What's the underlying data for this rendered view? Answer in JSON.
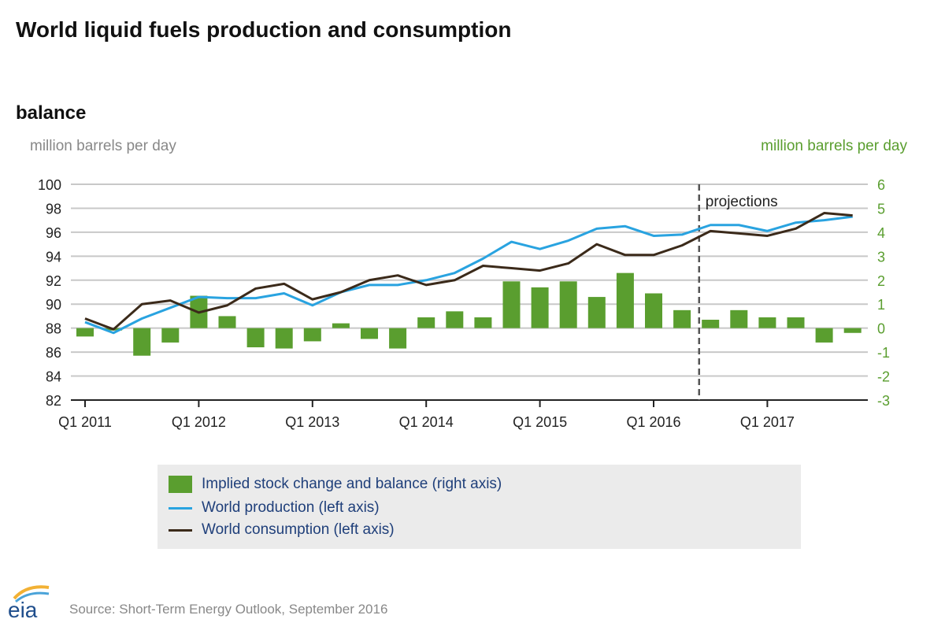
{
  "title": "World liquid fuels production and consumption",
  "subtitle": "balance",
  "left_unit": "million barrels per day",
  "right_unit": "million barrels per day",
  "source": "Source: Short-Term Energy Outlook, September 2016",
  "logo_text": "eia",
  "colors": {
    "bars": "#5a9e2f",
    "production": "#29a3e0",
    "consumption": "#3b2a1a",
    "right_axis": "#5a9e2f"
  },
  "chart_data": {
    "type": "bar+line",
    "x": [
      "Q1 2011",
      "Q2 2011",
      "Q3 2011",
      "Q4 2011",
      "Q1 2012",
      "Q2 2012",
      "Q3 2012",
      "Q4 2012",
      "Q1 2013",
      "Q2 2013",
      "Q3 2013",
      "Q4 2013",
      "Q1 2014",
      "Q2 2014",
      "Q3 2014",
      "Q4 2014",
      "Q1 2015",
      "Q2 2015",
      "Q3 2015",
      "Q4 2015",
      "Q1 2016",
      "Q2 2016",
      "Q3 2016",
      "Q4 2016",
      "Q1 2017",
      "Q2 2017",
      "Q3 2017",
      "Q4 2017"
    ],
    "x_tick_labels": [
      "Q1 2011",
      "Q1 2012",
      "Q1 2013",
      "Q1 2014",
      "Q1 2015",
      "Q1 2016",
      "Q1 2017"
    ],
    "left_axis": {
      "range": [
        82,
        100
      ],
      "ticks": [
        "82",
        "84",
        "86",
        "88",
        "90",
        "92",
        "94",
        "96",
        "98",
        "100"
      ]
    },
    "right_axis": {
      "range": [
        -3,
        6
      ],
      "ticks": [
        "-3",
        "-2",
        "-1",
        "0",
        "1",
        "2",
        "3",
        "4",
        "5",
        "6"
      ]
    },
    "grid": true,
    "annotation": "projections",
    "projection_start": "Q3 2016",
    "legend_placement": "bottom",
    "series": [
      {
        "name": "Implied stock change and balance (right axis)",
        "type": "bar",
        "axis": "right",
        "values": [
          -0.35,
          -0.1,
          -1.15,
          -0.6,
          1.35,
          0.5,
          -0.8,
          -0.85,
          -0.55,
          0.2,
          -0.45,
          -0.85,
          0.45,
          0.7,
          0.45,
          1.95,
          1.7,
          1.95,
          1.3,
          2.3,
          1.45,
          0.75,
          0.35,
          0.75,
          0.45,
          0.45,
          -0.6,
          -0.2
        ]
      },
      {
        "name": "World production (left axis)",
        "type": "line",
        "axis": "left",
        "values": [
          88.5,
          87.6,
          88.8,
          89.7,
          90.6,
          90.5,
          90.5,
          90.9,
          89.9,
          91.0,
          91.6,
          91.6,
          92.0,
          92.6,
          93.8,
          95.2,
          94.6,
          95.3,
          96.3,
          96.5,
          95.7,
          95.8,
          96.6,
          96.6,
          96.1,
          96.8,
          97.0,
          97.3
        ]
      },
      {
        "name": "World consumption (left axis)",
        "type": "line",
        "axis": "left",
        "values": [
          88.8,
          87.9,
          90.0,
          90.3,
          89.3,
          89.9,
          91.3,
          91.7,
          90.4,
          91.0,
          92.0,
          92.4,
          91.6,
          92.0,
          93.2,
          93.0,
          92.8,
          93.4,
          95.0,
          94.1,
          94.1,
          94.9,
          96.1,
          95.9,
          95.7,
          96.3,
          97.6,
          97.4
        ]
      }
    ]
  }
}
